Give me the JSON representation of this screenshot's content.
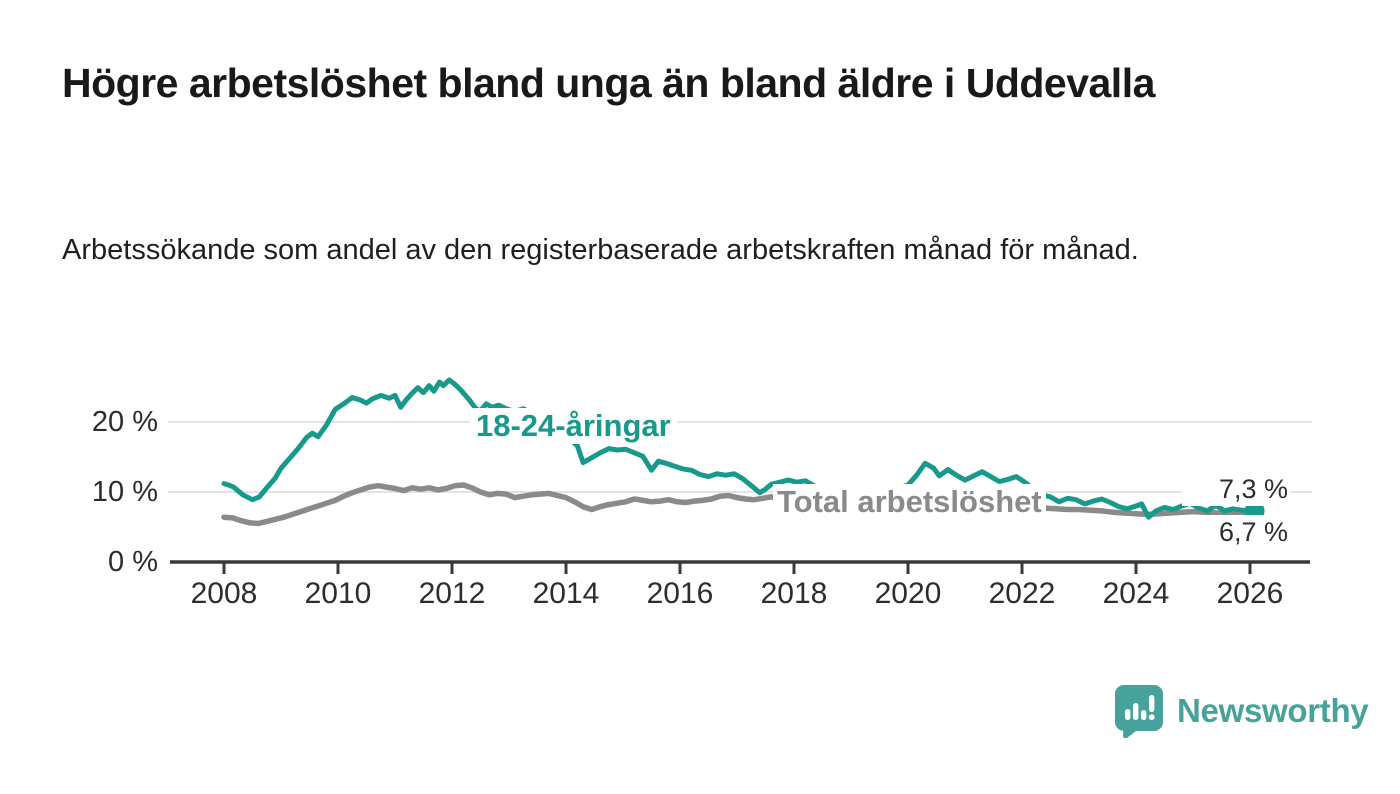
{
  "chart_data": {
    "type": "line",
    "title": "Högre arbetslöshet bland unga än bland äldre i Uddevalla",
    "subtitle": "Arbetssökande som andel av den registerbaserade arbetskraften månad för månad.",
    "grid": true,
    "legend_position": "inline-labels",
    "xlim": [
      2007.1,
      2027.0
    ],
    "ylim": [
      0,
      28
    ],
    "x_ticks": [
      2008,
      2010,
      2012,
      2014,
      2016,
      2018,
      2020,
      2022,
      2024,
      2026
    ],
    "x_tick_labels": [
      "2008",
      "2010",
      "2012",
      "2014",
      "2016",
      "2018",
      "2020",
      "2022",
      "2024",
      "2026"
    ],
    "y_ticks": [
      {
        "value": 0,
        "label": "0 %"
      },
      {
        "value": 10,
        "label": "10 %"
      },
      {
        "value": 20,
        "label": "20 %"
      }
    ],
    "gridline_values": [
      10,
      20
    ],
    "series": [
      {
        "name": "Total arbetslöshet",
        "color": "#8a8a8a",
        "end_label": "6,7 %",
        "end_value": 6.7,
        "points": [
          [
            2008.0,
            6.4
          ],
          [
            2008.15,
            6.3
          ],
          [
            2008.3,
            5.9
          ],
          [
            2008.45,
            5.6
          ],
          [
            2008.6,
            5.5
          ],
          [
            2008.75,
            5.8
          ],
          [
            2008.9,
            6.1
          ],
          [
            2009.05,
            6.4
          ],
          [
            2009.2,
            6.8
          ],
          [
            2009.35,
            7.2
          ],
          [
            2009.5,
            7.6
          ],
          [
            2009.65,
            8.0
          ],
          [
            2009.8,
            8.4
          ],
          [
            2009.95,
            8.8
          ],
          [
            2010.1,
            9.4
          ],
          [
            2010.25,
            9.9
          ],
          [
            2010.4,
            10.3
          ],
          [
            2010.55,
            10.7
          ],
          [
            2010.7,
            10.9
          ],
          [
            2010.85,
            10.7
          ],
          [
            2011.0,
            10.5
          ],
          [
            2011.15,
            10.2
          ],
          [
            2011.3,
            10.6
          ],
          [
            2011.45,
            10.4
          ],
          [
            2011.6,
            10.6
          ],
          [
            2011.75,
            10.3
          ],
          [
            2011.9,
            10.5
          ],
          [
            2012.05,
            10.9
          ],
          [
            2012.2,
            11.0
          ],
          [
            2012.35,
            10.6
          ],
          [
            2012.5,
            10.0
          ],
          [
            2012.65,
            9.6
          ],
          [
            2012.8,
            9.8
          ],
          [
            2012.95,
            9.7
          ],
          [
            2013.1,
            9.2
          ],
          [
            2013.25,
            9.4
          ],
          [
            2013.4,
            9.6
          ],
          [
            2013.55,
            9.7
          ],
          [
            2013.7,
            9.8
          ],
          [
            2013.85,
            9.5
          ],
          [
            2014.0,
            9.2
          ],
          [
            2014.15,
            8.6
          ],
          [
            2014.3,
            7.9
          ],
          [
            2014.45,
            7.5
          ],
          [
            2014.6,
            7.9
          ],
          [
            2014.75,
            8.2
          ],
          [
            2014.9,
            8.4
          ],
          [
            2015.05,
            8.6
          ],
          [
            2015.2,
            9.0
          ],
          [
            2015.35,
            8.8
          ],
          [
            2015.5,
            8.6
          ],
          [
            2015.65,
            8.7
          ],
          [
            2015.8,
            8.9
          ],
          [
            2015.95,
            8.6
          ],
          [
            2016.1,
            8.5
          ],
          [
            2016.25,
            8.7
          ],
          [
            2016.4,
            8.8
          ],
          [
            2016.55,
            9.0
          ],
          [
            2016.7,
            9.4
          ],
          [
            2016.85,
            9.5
          ],
          [
            2017.0,
            9.2
          ],
          [
            2017.15,
            9.0
          ],
          [
            2017.3,
            8.9
          ],
          [
            2017.45,
            9.1
          ],
          [
            2017.6,
            9.3
          ],
          [
            2017.75,
            9.1
          ],
          [
            2017.9,
            9.0
          ],
          [
            2018.1,
            8.8
          ],
          [
            2018.4,
            8.6
          ],
          [
            2018.7,
            8.5
          ],
          [
            2019.0,
            8.4
          ],
          [
            2019.3,
            8.3
          ],
          [
            2019.6,
            8.3
          ],
          [
            2019.9,
            8.5
          ],
          [
            2020.2,
            9.0
          ],
          [
            2020.5,
            9.3
          ],
          [
            2020.8,
            9.1
          ],
          [
            2021.1,
            8.8
          ],
          [
            2021.4,
            8.5
          ],
          [
            2021.7,
            8.2
          ],
          [
            2022.0,
            7.9
          ],
          [
            2022.2,
            7.8
          ],
          [
            2022.4,
            7.7
          ],
          [
            2022.6,
            7.6
          ],
          [
            2022.8,
            7.5
          ],
          [
            2023.0,
            7.5
          ],
          [
            2023.2,
            7.4
          ],
          [
            2023.4,
            7.3
          ],
          [
            2023.6,
            7.1
          ],
          [
            2023.8,
            7.0
          ],
          [
            2024.0,
            6.9
          ],
          [
            2024.2,
            6.8
          ],
          [
            2024.4,
            6.9
          ],
          [
            2024.6,
            7.0
          ],
          [
            2024.8,
            7.1
          ],
          [
            2025.0,
            7.2
          ],
          [
            2025.2,
            7.1
          ],
          [
            2025.4,
            7.0
          ],
          [
            2025.6,
            6.9
          ],
          [
            2025.8,
            6.8
          ],
          [
            2026.08,
            6.7
          ]
        ]
      },
      {
        "name": "18-24-åringar",
        "color": "#17998c",
        "end_label": "7,3 %",
        "end_value": 7.3,
        "end_dot": true,
        "points": [
          [
            2008.0,
            11.2
          ],
          [
            2008.08,
            11.0
          ],
          [
            2008.17,
            10.7
          ],
          [
            2008.33,
            9.6
          ],
          [
            2008.5,
            8.9
          ],
          [
            2008.62,
            9.3
          ],
          [
            2008.75,
            10.6
          ],
          [
            2008.9,
            12.0
          ],
          [
            2009.0,
            13.4
          ],
          [
            2009.15,
            14.8
          ],
          [
            2009.3,
            16.2
          ],
          [
            2009.45,
            17.8
          ],
          [
            2009.55,
            18.4
          ],
          [
            2009.65,
            17.9
          ],
          [
            2009.8,
            19.6
          ],
          [
            2009.95,
            21.8
          ],
          [
            2010.1,
            22.6
          ],
          [
            2010.25,
            23.5
          ],
          [
            2010.4,
            23.1
          ],
          [
            2010.5,
            22.7
          ],
          [
            2010.6,
            23.3
          ],
          [
            2010.75,
            23.8
          ],
          [
            2010.9,
            23.4
          ],
          [
            2011.0,
            23.8
          ],
          [
            2011.1,
            22.1
          ],
          [
            2011.2,
            23.2
          ],
          [
            2011.3,
            24.1
          ],
          [
            2011.4,
            24.9
          ],
          [
            2011.5,
            24.2
          ],
          [
            2011.6,
            25.2
          ],
          [
            2011.68,
            24.4
          ],
          [
            2011.78,
            25.7
          ],
          [
            2011.85,
            25.2
          ],
          [
            2011.95,
            26.0
          ],
          [
            2012.05,
            25.4
          ],
          [
            2012.15,
            24.6
          ],
          [
            2012.3,
            23.2
          ],
          [
            2012.42,
            21.9
          ],
          [
            2012.5,
            21.6
          ],
          [
            2012.6,
            22.6
          ],
          [
            2012.7,
            22.1
          ],
          [
            2012.82,
            22.4
          ],
          [
            2012.95,
            21.9
          ],
          [
            2013.1,
            21.5
          ],
          [
            2013.25,
            21.9
          ],
          [
            2013.4,
            21.2
          ],
          [
            2013.55,
            20.3
          ],
          [
            2013.7,
            19.6
          ],
          [
            2013.85,
            18.7
          ],
          [
            2014.0,
            17.9
          ],
          [
            2014.1,
            17.3
          ],
          [
            2014.2,
            16.6
          ],
          [
            2014.3,
            14.2
          ],
          [
            2014.45,
            14.9
          ],
          [
            2014.6,
            15.6
          ],
          [
            2014.75,
            16.2
          ],
          [
            2014.9,
            16.0
          ],
          [
            2015.05,
            16.1
          ],
          [
            2015.2,
            15.6
          ],
          [
            2015.35,
            15.1
          ],
          [
            2015.5,
            13.1
          ],
          [
            2015.62,
            14.4
          ],
          [
            2015.75,
            14.1
          ],
          [
            2015.9,
            13.7
          ],
          [
            2016.05,
            13.3
          ],
          [
            2016.2,
            13.1
          ],
          [
            2016.35,
            12.5
          ],
          [
            2016.5,
            12.2
          ],
          [
            2016.65,
            12.6
          ],
          [
            2016.8,
            12.4
          ],
          [
            2016.95,
            12.6
          ],
          [
            2017.1,
            11.9
          ],
          [
            2017.25,
            10.9
          ],
          [
            2017.4,
            9.9
          ],
          [
            2017.5,
            10.4
          ],
          [
            2017.6,
            11.1
          ],
          [
            2017.75,
            11.4
          ],
          [
            2017.9,
            11.7
          ],
          [
            2018.05,
            11.4
          ],
          [
            2018.2,
            11.6
          ],
          [
            2018.35,
            10.9
          ],
          [
            2018.5,
            10.3
          ],
          [
            2018.65,
            10.5
          ],
          [
            2018.8,
            10.2
          ],
          [
            2019.0,
            10.3
          ],
          [
            2019.2,
            10.7
          ],
          [
            2019.4,
            10.4
          ],
          [
            2019.6,
            10.1
          ],
          [
            2019.8,
            10.5
          ],
          [
            2020.0,
            11.0
          ],
          [
            2020.15,
            12.4
          ],
          [
            2020.3,
            14.1
          ],
          [
            2020.45,
            13.4
          ],
          [
            2020.55,
            12.3
          ],
          [
            2020.7,
            13.2
          ],
          [
            2020.85,
            12.4
          ],
          [
            2021.0,
            11.7
          ],
          [
            2021.15,
            12.3
          ],
          [
            2021.3,
            12.9
          ],
          [
            2021.45,
            12.2
          ],
          [
            2021.6,
            11.5
          ],
          [
            2021.75,
            11.8
          ],
          [
            2021.9,
            12.2
          ],
          [
            2022.05,
            11.4
          ],
          [
            2022.2,
            10.4
          ],
          [
            2022.35,
            9.6
          ],
          [
            2022.5,
            9.3
          ],
          [
            2022.65,
            8.6
          ],
          [
            2022.8,
            9.1
          ],
          [
            2022.95,
            8.9
          ],
          [
            2023.1,
            8.3
          ],
          [
            2023.25,
            8.7
          ],
          [
            2023.4,
            9.0
          ],
          [
            2023.55,
            8.5
          ],
          [
            2023.7,
            7.9
          ],
          [
            2023.85,
            7.6
          ],
          [
            2024.0,
            8.0
          ],
          [
            2024.1,
            8.3
          ],
          [
            2024.22,
            6.4
          ],
          [
            2024.35,
            7.3
          ],
          [
            2024.5,
            7.8
          ],
          [
            2024.65,
            7.5
          ],
          [
            2024.8,
            8.0
          ],
          [
            2024.95,
            8.4
          ],
          [
            2025.1,
            7.7
          ],
          [
            2025.25,
            7.3
          ],
          [
            2025.4,
            8.1
          ],
          [
            2025.55,
            7.3
          ],
          [
            2025.7,
            7.6
          ],
          [
            2025.85,
            7.4
          ],
          [
            2026.08,
            7.3
          ]
        ]
      }
    ],
    "colors": {
      "youth_line": "#17998c",
      "total_line": "#8a8a8a",
      "axis": "#3a3a3a",
      "gridline": "#e3e3e3",
      "tick_text": "#2d2d2d"
    }
  },
  "footer": {
    "brand": "Newsworthy",
    "brand_color": "#46a29b",
    "logo_icon": "bar-chart-speech-bubble-icon"
  }
}
